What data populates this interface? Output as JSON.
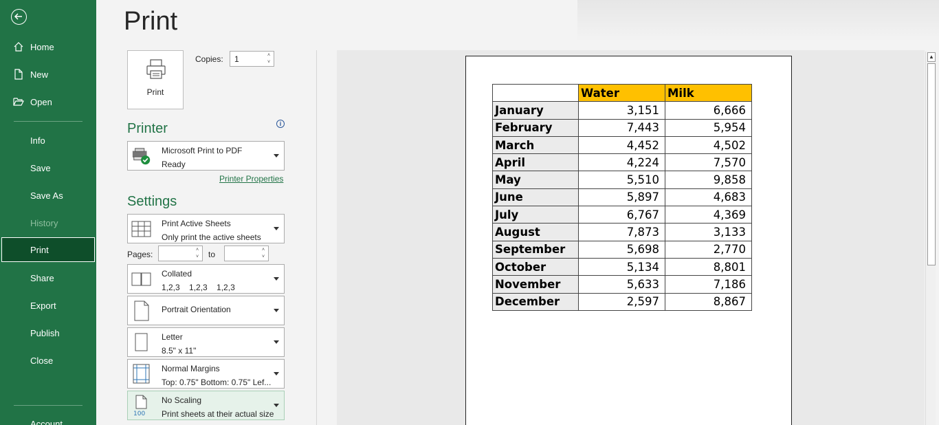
{
  "sidebar": {
    "items": [
      {
        "label": "Home"
      },
      {
        "label": "New"
      },
      {
        "label": "Open"
      },
      {
        "label": "Info"
      },
      {
        "label": "Save"
      },
      {
        "label": "Save As"
      },
      {
        "label": "History"
      },
      {
        "label": "Print"
      },
      {
        "label": "Share"
      },
      {
        "label": "Export"
      },
      {
        "label": "Publish"
      },
      {
        "label": "Close"
      },
      {
        "label": "Account"
      }
    ]
  },
  "header": {
    "title": "Print"
  },
  "print_button": {
    "label": "Print"
  },
  "copies": {
    "label": "Copies:",
    "value": "1"
  },
  "printer": {
    "section_title": "Printer",
    "name": "Microsoft Print to PDF",
    "status": "Ready",
    "properties_link": "Printer Properties"
  },
  "settings": {
    "section_title": "Settings",
    "scope": {
      "title": "Print Active Sheets",
      "subtitle": "Only print the active sheets"
    },
    "pages": {
      "label": "Pages:",
      "to_label": "to"
    },
    "collation": {
      "title": "Collated",
      "subtitle": "1,2,3    1,2,3    1,2,3"
    },
    "orientation": {
      "title": "Portrait Orientation"
    },
    "paper": {
      "title": "Letter",
      "subtitle": "8.5\" x 11\""
    },
    "margins": {
      "title": "Normal Margins",
      "subtitle": "Top: 0.75\" Bottom: 0.75\" Lef..."
    },
    "scaling": {
      "title": "No Scaling",
      "subtitle": "Print sheets at their actual size",
      "icon_text": "100"
    }
  },
  "preview": {
    "headers": [
      "",
      "Water",
      "Milk"
    ],
    "rows": [
      {
        "month": "January",
        "water": "3,151",
        "milk": "6,666"
      },
      {
        "month": "February",
        "water": "7,443",
        "milk": "5,954"
      },
      {
        "month": "March",
        "water": "4,452",
        "milk": "4,502"
      },
      {
        "month": "April",
        "water": "4,224",
        "milk": "7,570"
      },
      {
        "month": "May",
        "water": "5,510",
        "milk": "9,858"
      },
      {
        "month": "June",
        "water": "5,897",
        "milk": "4,683"
      },
      {
        "month": "July",
        "water": "6,767",
        "milk": "4,369"
      },
      {
        "month": "August",
        "water": "7,873",
        "milk": "3,133"
      },
      {
        "month": "September",
        "water": "5,698",
        "milk": "2,770"
      },
      {
        "month": "October",
        "water": "5,134",
        "milk": "8,801"
      },
      {
        "month": "November",
        "water": "5,633",
        "milk": "7,186"
      },
      {
        "month": "December",
        "water": "2,597",
        "milk": "8,867"
      }
    ]
  },
  "colors": {
    "brand": "#217346",
    "header_fill": "#ffc000"
  }
}
